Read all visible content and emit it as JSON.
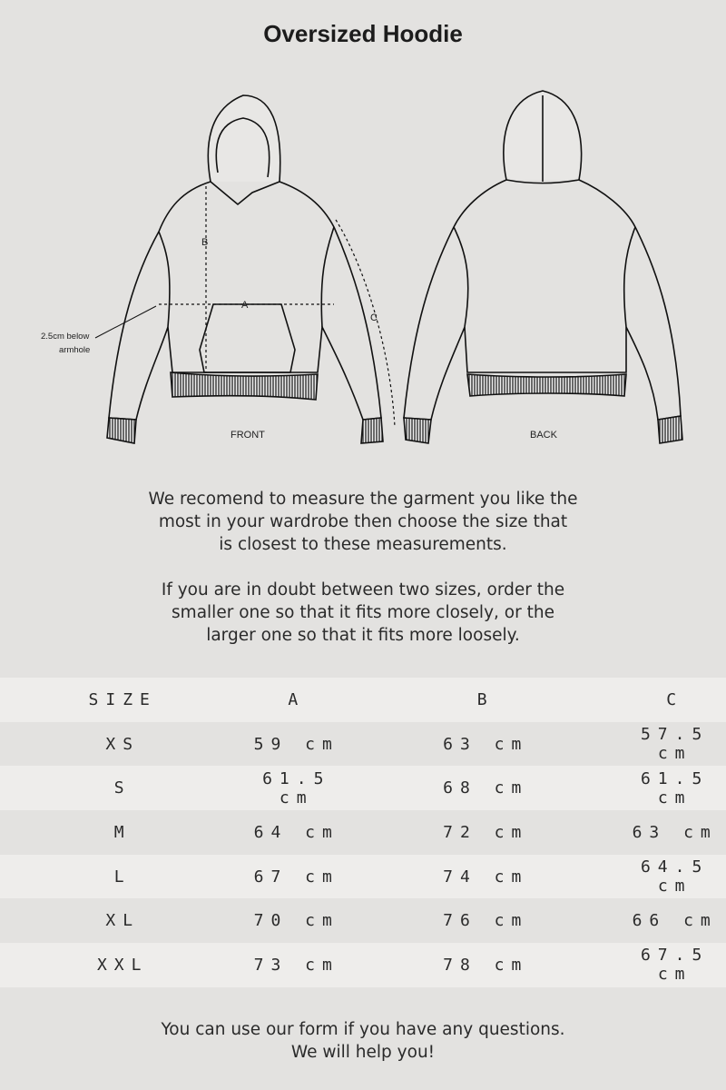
{
  "title": "Oversized Hoodie",
  "illustration": {
    "front_label": "FRONT",
    "back_label": "BACK",
    "marker_a": "A",
    "marker_b": "B",
    "marker_c": "C",
    "note_line1": "2.5cm below",
    "note_line2": "armhole"
  },
  "intro": {
    "para1": [
      "We recomend to measure the garment you like the",
      "most in your wardrobe then choose the size that",
      "is closest to these measurements."
    ],
    "para2": [
      "If you are in doubt between two sizes, order the",
      "smaller one so that it fits more closely, or the",
      "larger one so that it fits more loosely."
    ]
  },
  "size_table": {
    "headers": [
      "SIZE",
      "A",
      "B",
      "C"
    ],
    "rows": [
      [
        "XS",
        "59 cm",
        "63 cm",
        "57.5 cm"
      ],
      [
        "S",
        "61.5 cm",
        "68 cm",
        "61.5 cm"
      ],
      [
        "M",
        "64 cm",
        "72 cm",
        "63 cm"
      ],
      [
        "L",
        "67 cm",
        "74 cm",
        "64.5 cm"
      ],
      [
        "XL",
        "70 cm",
        "76 cm",
        "66 cm"
      ],
      [
        "XXL",
        "73 cm",
        "78 cm",
        "67.5 cm"
      ]
    ]
  },
  "footer": [
    "You can use our form if you have any questions.",
    "We will help you!"
  ]
}
